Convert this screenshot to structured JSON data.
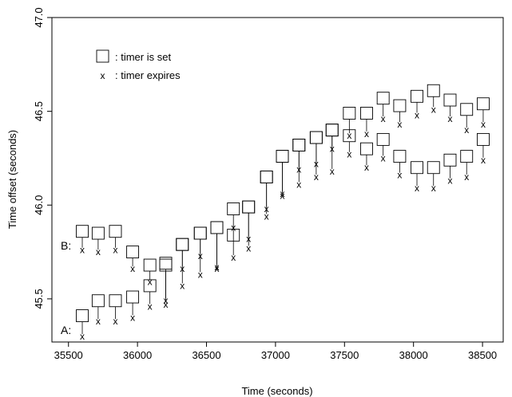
{
  "chart_data": {
    "type": "scatter",
    "title": "",
    "xlabel": "Time (seconds)",
    "ylabel": "Time offset (seconds)",
    "xlim": [
      35380,
      38650
    ],
    "ylim": [
      45.27,
      47.0
    ],
    "xticks": [
      35500,
      36000,
      36500,
      37000,
      37500,
      38000,
      38500
    ],
    "yticks": [
      45.5,
      46.0,
      46.5,
      47.0
    ],
    "xtick_labels": [
      "35500",
      "36000",
      "36500",
      "37000",
      "37500",
      "38000",
      "38500"
    ],
    "ytick_labels": [
      "45.5",
      "46.0",
      "46.5",
      "47.0"
    ],
    "legend": {
      "placement": "top-left",
      "entries": [
        {
          "marker": "square",
          "label": ": timer is set"
        },
        {
          "marker": "x",
          "label": ": timer expires"
        }
      ]
    },
    "series": [
      {
        "name": "A:",
        "timer_set_x": [
          35600,
          35715,
          35840,
          35965,
          36090,
          36205,
          36325,
          36455,
          36575,
          36695,
          36805,
          36935,
          37050,
          37170,
          37295,
          37410,
          37535,
          37660,
          37780,
          37900,
          38025,
          38145,
          38265,
          38385,
          38505
        ],
        "timer_set_y": [
          45.41,
          45.49,
          45.49,
          45.51,
          45.57,
          45.69,
          45.79,
          45.85,
          45.88,
          45.98,
          45.99,
          46.15,
          46.26,
          46.32,
          46.36,
          46.4,
          46.49,
          46.49,
          46.57,
          46.53,
          46.58,
          46.61,
          46.56,
          46.51,
          46.54
        ],
        "timer_expires_y": [
          45.3,
          45.38,
          45.38,
          45.4,
          45.46,
          45.47,
          45.57,
          45.63,
          45.66,
          45.72,
          45.77,
          45.94,
          46.05,
          46.11,
          46.15,
          46.18,
          46.37,
          46.38,
          46.46,
          46.43,
          46.48,
          46.51,
          46.46,
          46.4,
          46.43
        ]
      },
      {
        "name": "B:",
        "timer_set_x": [
          35600,
          35715,
          35840,
          35965,
          36090,
          36205,
          36325,
          36455,
          36575,
          36695,
          36805,
          36935,
          37050,
          37170,
          37295,
          37410,
          37535,
          37660,
          37780,
          37900,
          38025,
          38145,
          38265,
          38385,
          38505
        ],
        "timer_set_y": [
          45.86,
          45.85,
          45.86,
          45.75,
          45.68,
          45.68,
          45.79,
          45.85,
          45.88,
          45.84,
          45.99,
          46.15,
          46.26,
          46.32,
          46.36,
          46.4,
          46.37,
          46.3,
          46.35,
          46.26,
          46.2,
          46.2,
          46.24,
          46.26,
          46.35
        ],
        "timer_expires_y": [
          45.76,
          45.75,
          45.76,
          45.66,
          45.59,
          45.49,
          45.66,
          45.73,
          45.67,
          45.88,
          45.82,
          45.98,
          46.06,
          46.19,
          46.22,
          46.3,
          46.27,
          46.2,
          46.25,
          46.16,
          46.09,
          46.09,
          46.13,
          46.15,
          46.24
        ]
      }
    ]
  }
}
